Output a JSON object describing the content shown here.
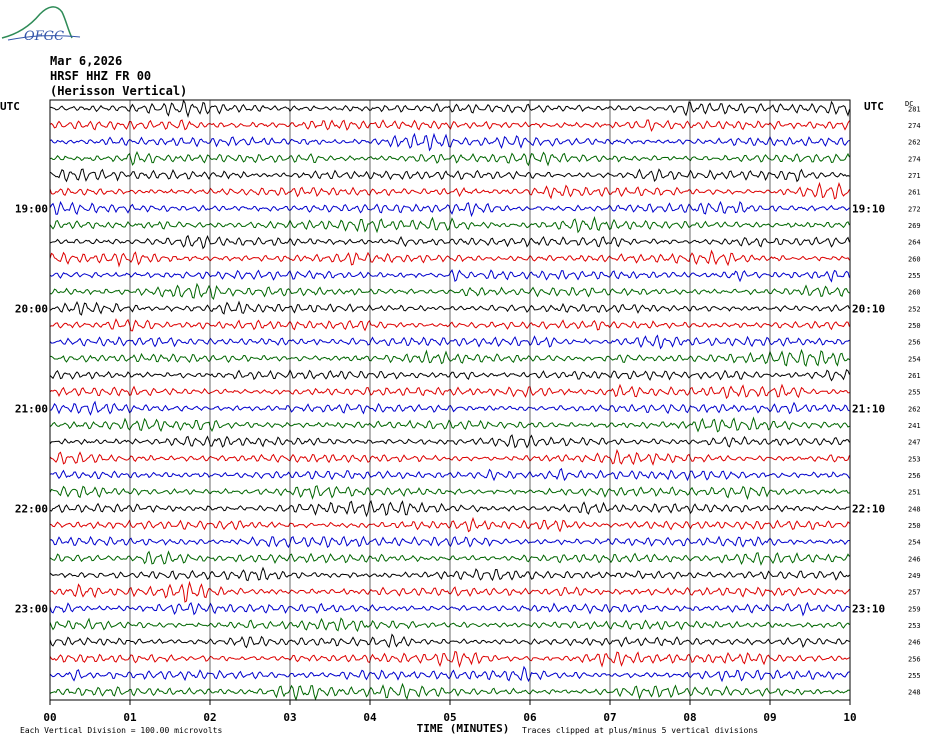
{
  "logo": {
    "text": "OFGC"
  },
  "header": {
    "date": "Mar 6,2026",
    "station": "HRSF HHZ FR 00",
    "location": "(Herisson Vertical)"
  },
  "chart_data": {
    "type": "line",
    "title": "",
    "xlabel": "TIME (MINUTES)",
    "xlim": [
      0,
      10
    ],
    "x_ticks": [
      "00",
      "01",
      "02",
      "03",
      "04",
      "05",
      "06",
      "07",
      "08",
      "09",
      "10"
    ],
    "left_axis_label": "UTC",
    "right_axis_label": "UTC",
    "dc_label": "DC",
    "left_time_labels": [
      {
        "row": 6,
        "label": "19:00"
      },
      {
        "row": 12,
        "label": "20:00"
      },
      {
        "row": 18,
        "label": "21:00"
      },
      {
        "row": 24,
        "label": "22:00"
      },
      {
        "row": 30,
        "label": "23:00"
      }
    ],
    "right_time_labels": [
      {
        "row": 6,
        "label": "19:10"
      },
      {
        "row": 12,
        "label": "20:10"
      },
      {
        "row": 18,
        "label": "21:10"
      },
      {
        "row": 24,
        "label": "22:10"
      },
      {
        "row": 30,
        "label": "23:10"
      }
    ],
    "dc_offsets": [
      281,
      274,
      262,
      274,
      271,
      261,
      272,
      269,
      264,
      260,
      255,
      260,
      252,
      250,
      256,
      254,
      261,
      255,
      262,
      241,
      247,
      253,
      256,
      251,
      248,
      250,
      254,
      246,
      249,
      257,
      259,
      253,
      246,
      256,
      255,
      248
    ],
    "trace_colors": [
      "#000000",
      "#dd0000",
      "#0000cc",
      "#006600"
    ],
    "footer_left": "Each Vertical Division =  100.00 microvolts",
    "footer_right": "Traces clipped at plus/minus 5 vertical divisions",
    "grid": true
  }
}
